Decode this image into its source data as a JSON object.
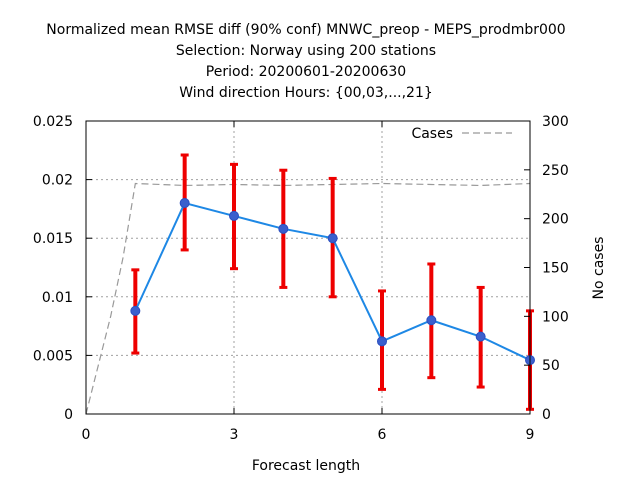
{
  "chart_data": {
    "type": "line",
    "title_lines": [
      "Normalized mean RMSE diff (90% conf) MNWC_preop - MEPS_prodmbr000",
      "Selection: Norway using   200 stations",
      "Period: 20200601-20200630",
      "Wind direction    Hours: {00,03,...,21}"
    ],
    "xlabel": "Forecast length",
    "ylabel": "",
    "y2label": "No cases",
    "xlim": [
      0,
      9
    ],
    "ylim": [
      0,
      0.025
    ],
    "y2lim": [
      0,
      300
    ],
    "x_ticks": [
      0,
      3,
      6,
      9
    ],
    "x_tick_labels": [
      "0",
      "3",
      "6",
      "9"
    ],
    "y_ticks": [
      0,
      0.005,
      0.01,
      0.015,
      0.02,
      0.025
    ],
    "y_tick_labels": [
      "0",
      "0.005",
      "0.01",
      "0.015",
      "0.02",
      "0.025"
    ],
    "y2_ticks": [
      0,
      50,
      100,
      150,
      200,
      250,
      300
    ],
    "y2_tick_labels": [
      "0",
      "50",
      "100",
      "150",
      "200",
      "250",
      "300"
    ],
    "grid": true,
    "legend_position": "top-right",
    "colors": {
      "line": "#1e88e5",
      "marker": "#3a5fcd",
      "errorbar": "#ee0000",
      "cases": "#999999"
    },
    "series": [
      {
        "x": [
          1,
          2,
          3,
          4,
          5,
          6,
          7,
          8,
          9
        ],
        "y": [
          0.0088,
          0.018,
          0.0169,
          0.0158,
          0.015,
          0.0062,
          0.008,
          0.0066,
          0.0046
        ],
        "ci_low": [
          0.0052,
          0.014,
          0.0124,
          0.0108,
          0.01,
          0.0021,
          0.0031,
          0.0023,
          0.0004
        ],
        "ci_high": [
          0.0123,
          0.0221,
          0.0213,
          0.0208,
          0.0201,
          0.0105,
          0.0128,
          0.0108,
          0.0088
        ]
      },
      {
        "name": "Cases",
        "axis": "right",
        "style": "dashed",
        "x": [
          0,
          0.25,
          0.5,
          0.75,
          1,
          2,
          3,
          4,
          5,
          6,
          7,
          8,
          9
        ],
        "y": [
          0,
          50,
          100,
          160,
          236,
          234,
          235,
          234,
          235,
          236,
          235,
          234,
          236
        ]
      }
    ]
  }
}
